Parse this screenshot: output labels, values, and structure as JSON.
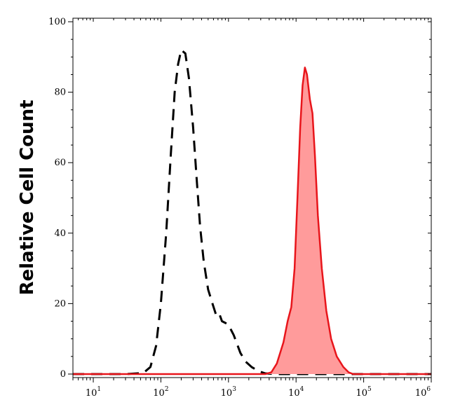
{
  "chart_data": {
    "type": "area",
    "title": "",
    "xlabel": "",
    "ylabel": "Relative Cell Count",
    "xscale": "log",
    "xlim": [
      5,
      1000000
    ],
    "ylim": [
      -1,
      101
    ],
    "grid": false,
    "legend": "none",
    "x_tick_labels": [
      {
        "base": "10",
        "exp": "1",
        "value": 10
      },
      {
        "base": "10",
        "exp": "2",
        "value": 100
      },
      {
        "base": "10",
        "exp": "3",
        "value": 1000
      },
      {
        "base": "10",
        "exp": "4",
        "value": 10000
      },
      {
        "base": "10",
        "exp": "5",
        "value": 100000
      },
      {
        "base": "10",
        "exp": "6",
        "value": 1000000
      }
    ],
    "y_tick_labels": [
      "0",
      "20",
      "40",
      "60",
      "80",
      "100"
    ],
    "y_tick_values": [
      0,
      20,
      40,
      60,
      80,
      100
    ],
    "series": [
      {
        "style": "dashed",
        "color": "#000000",
        "fill": "none",
        "points": [
          [
            5,
            0
          ],
          [
            30,
            0
          ],
          [
            55,
            0.3
          ],
          [
            70,
            2
          ],
          [
            85,
            8
          ],
          [
            100,
            20
          ],
          [
            120,
            40
          ],
          [
            140,
            62
          ],
          [
            160,
            80
          ],
          [
            180,
            88
          ],
          [
            200,
            92
          ],
          [
            230,
            91
          ],
          [
            260,
            84
          ],
          [
            300,
            70
          ],
          [
            340,
            55
          ],
          [
            380,
            42
          ],
          [
            430,
            32
          ],
          [
            500,
            24
          ],
          [
            580,
            20
          ],
          [
            650,
            17
          ],
          [
            720,
            17.5
          ],
          [
            800,
            15
          ],
          [
            900,
            14.5
          ],
          [
            1000,
            14
          ],
          [
            1200,
            11
          ],
          [
            1500,
            6
          ],
          [
            1800,
            3.5
          ],
          [
            2200,
            2
          ],
          [
            2800,
            0.8
          ],
          [
            3500,
            0.2
          ],
          [
            5000,
            0
          ],
          [
            1000000,
            0
          ]
        ]
      },
      {
        "style": "solid",
        "color": "#e8151b",
        "fill": "#ff9b9b",
        "points": [
          [
            5,
            0
          ],
          [
            3500,
            0
          ],
          [
            4300,
            0.5
          ],
          [
            5200,
            3
          ],
          [
            6500,
            9
          ],
          [
            7500,
            15
          ],
          [
            8500,
            19
          ],
          [
            9500,
            30
          ],
          [
            10500,
            50
          ],
          [
            11500,
            70
          ],
          [
            12500,
            82
          ],
          [
            13500,
            87
          ],
          [
            14500,
            85
          ],
          [
            16000,
            78
          ],
          [
            17500,
            74
          ],
          [
            19000,
            62
          ],
          [
            21000,
            45
          ],
          [
            24000,
            30
          ],
          [
            28000,
            18
          ],
          [
            33000,
            10
          ],
          [
            40000,
            5
          ],
          [
            50000,
            2
          ],
          [
            60000,
            0.5
          ],
          [
            70000,
            0
          ],
          [
            1000000,
            0
          ]
        ]
      }
    ]
  }
}
